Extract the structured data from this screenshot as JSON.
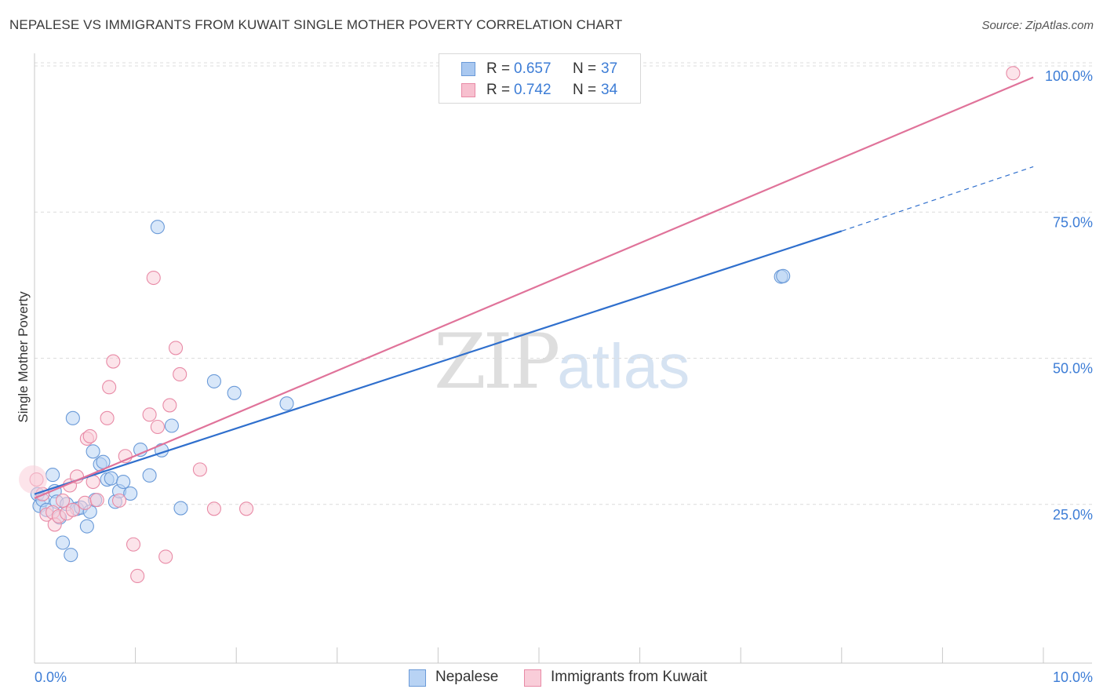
{
  "header": {
    "title": "NEPALESE VS IMMIGRANTS FROM KUWAIT SINGLE MOTHER POVERTY CORRELATION CHART",
    "source": "Source: ZipAtlas.com"
  },
  "watermark": {
    "zip": "ZIP",
    "atlas": "atlas"
  },
  "legend": {
    "rows": [
      {
        "r_label": "R =",
        "r_value": "0.657",
        "n_label": "N =",
        "n_value": "37",
        "color": "#a9c8f0",
        "border": "#6a9ad8"
      },
      {
        "r_label": "R =",
        "r_value": "0.742",
        "n_label": "N =",
        "n_value": "34",
        "color": "#f7c0cf",
        "border": "#e88aa6"
      }
    ]
  },
  "bottom_legend": [
    {
      "label": "Nepalese",
      "color": "#b8d3f4",
      "border": "#6a9ad8"
    },
    {
      "label": "Immigrants from Kuwait",
      "color": "#f9cdd9",
      "border": "#e88aa6"
    }
  ],
  "chart_data": {
    "type": "scatter",
    "title": "NEPALESE VS IMMIGRANTS FROM KUWAIT SINGLE MOTHER POVERTY CORRELATION CHART",
    "xlabel": "",
    "ylabel": "Single Mother Poverty",
    "xlim": [
      0,
      10
    ],
    "ylim": [
      0,
      100
    ],
    "x_tick_labels": [
      "0.0%",
      "10.0%"
    ],
    "y_ticks": [
      25,
      50,
      75,
      100
    ],
    "y_tick_labels": [
      "25.0%",
      "50.0%",
      "75.0%",
      "100.0%"
    ],
    "grid": true,
    "legend_position": "top-center",
    "series": [
      {
        "name": "Nepalese",
        "color": "#6a9ad8",
        "fill": "#b8d3f4",
        "line_color": "#2f6fcd",
        "trend": {
          "x_start": 0,
          "y_start": 28.5,
          "x_end": 8.0,
          "y_end": 73.5,
          "dashed_to_x": 9.9,
          "dashed_to_y": 84.5
        },
        "points": [
          [
            0.03,
            28.5
          ],
          [
            0.05,
            26.5
          ],
          [
            0.08,
            27.5
          ],
          [
            0.12,
            25.8
          ],
          [
            0.18,
            31.8
          ],
          [
            0.2,
            29.0
          ],
          [
            0.22,
            27.2
          ],
          [
            0.25,
            24.5
          ],
          [
            0.28,
            20.2
          ],
          [
            0.32,
            26.8
          ],
          [
            0.36,
            18.1
          ],
          [
            0.38,
            41.5
          ],
          [
            0.42,
            26.0
          ],
          [
            0.46,
            26.2
          ],
          [
            0.52,
            23.0
          ],
          [
            0.55,
            25.5
          ],
          [
            0.58,
            35.8
          ],
          [
            0.6,
            27.5
          ],
          [
            0.65,
            33.6
          ],
          [
            0.68,
            34.0
          ],
          [
            0.72,
            31.0
          ],
          [
            0.76,
            31.2
          ],
          [
            0.8,
            27.2
          ],
          [
            0.84,
            29.0
          ],
          [
            0.88,
            30.6
          ],
          [
            0.95,
            28.6
          ],
          [
            1.05,
            36.1
          ],
          [
            1.14,
            31.7
          ],
          [
            1.26,
            36.0
          ],
          [
            1.36,
            40.2
          ],
          [
            1.22,
            74.2
          ],
          [
            1.45,
            26.1
          ],
          [
            1.78,
            47.8
          ],
          [
            1.98,
            45.8
          ],
          [
            2.5,
            44.0
          ],
          [
            7.4,
            65.7
          ],
          [
            7.42,
            65.8
          ]
        ]
      },
      {
        "name": "Immigrants from Kuwait",
        "color": "#e88aa6",
        "fill": "#f9cdd9",
        "line_color": "#e0739a",
        "trend": {
          "x_start": 0,
          "y_start": 27.8,
          "x_end": 9.9,
          "y_end": 99.8
        },
        "points": [
          [
            0.02,
            31.0
          ],
          [
            0.08,
            28.5
          ],
          [
            0.12,
            25.0
          ],
          [
            0.18,
            25.4
          ],
          [
            0.2,
            23.3
          ],
          [
            0.24,
            24.7
          ],
          [
            0.28,
            27.4
          ],
          [
            0.32,
            25.2
          ],
          [
            0.35,
            30.0
          ],
          [
            0.38,
            25.8
          ],
          [
            0.42,
            31.5
          ],
          [
            0.5,
            27.0
          ],
          [
            0.52,
            38.0
          ],
          [
            0.55,
            38.4
          ],
          [
            0.58,
            30.6
          ],
          [
            0.62,
            27.5
          ],
          [
            0.72,
            41.5
          ],
          [
            0.74,
            46.8
          ],
          [
            0.78,
            51.2
          ],
          [
            0.84,
            27.4
          ],
          [
            0.9,
            35.0
          ],
          [
            0.98,
            19.9
          ],
          [
            1.02,
            14.5
          ],
          [
            1.14,
            42.1
          ],
          [
            1.18,
            65.5
          ],
          [
            1.22,
            40.0
          ],
          [
            1.3,
            17.8
          ],
          [
            1.34,
            43.7
          ],
          [
            1.4,
            53.5
          ],
          [
            1.44,
            49.0
          ],
          [
            1.64,
            32.7
          ],
          [
            1.78,
            26.0
          ],
          [
            2.1,
            26.0
          ],
          [
            9.7,
            100.5
          ]
        ]
      }
    ]
  }
}
